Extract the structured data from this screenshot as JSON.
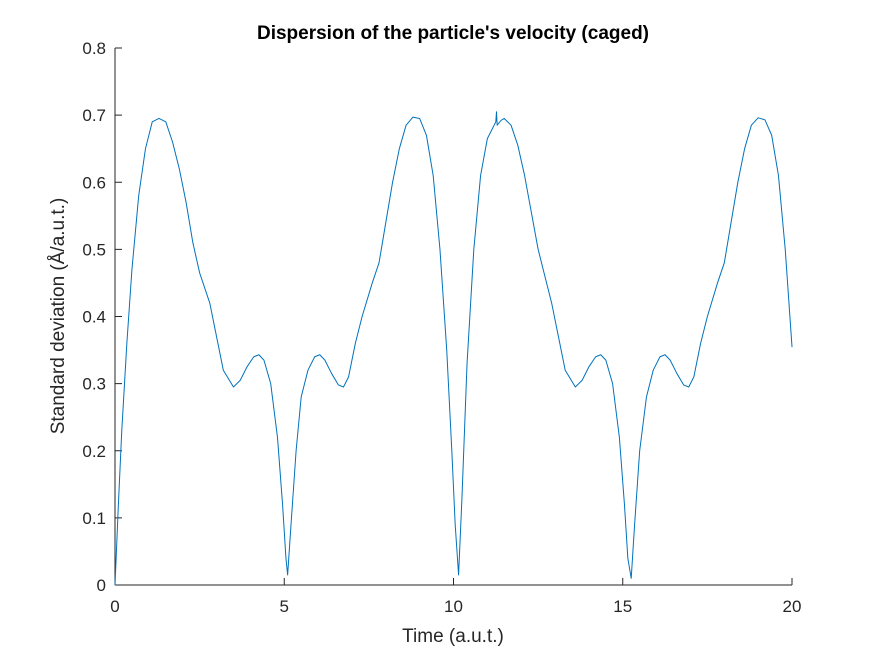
{
  "chart_data": {
    "type": "line",
    "title": "Dispersion of the particle's velocity (caged)",
    "xlabel": "Time (a.u.t.)",
    "ylabel": "Standard deviation (Å/a.u.t.)",
    "xlim": [
      0,
      20
    ],
    "ylim": [
      0,
      0.8
    ],
    "xticks": [
      0,
      5,
      10,
      15,
      20
    ],
    "xtick_labels": [
      "0",
      "5",
      "10",
      "15",
      "20"
    ],
    "yticks": [
      0,
      0.1,
      0.2,
      0.3,
      0.4,
      0.5,
      0.6,
      0.7,
      0.8
    ],
    "ytick_labels": [
      "0",
      "0.1",
      "0.2",
      "0.3",
      "0.4",
      "0.5",
      "0.6",
      "0.7",
      "0.8"
    ],
    "grid": false,
    "series": [
      {
        "color": "#0072BD",
        "points": [
          [
            0.0,
            0.0
          ],
          [
            0.1,
            0.12
          ],
          [
            0.2,
            0.23
          ],
          [
            0.35,
            0.36
          ],
          [
            0.5,
            0.47
          ],
          [
            0.7,
            0.58
          ],
          [
            0.9,
            0.65
          ],
          [
            1.1,
            0.69
          ],
          [
            1.3,
            0.695
          ],
          [
            1.5,
            0.69
          ],
          [
            1.7,
            0.66
          ],
          [
            1.9,
            0.62
          ],
          [
            2.1,
            0.57
          ],
          [
            2.3,
            0.51
          ],
          [
            2.5,
            0.465
          ],
          [
            2.8,
            0.42
          ],
          [
            3.0,
            0.37
          ],
          [
            3.2,
            0.32
          ],
          [
            3.5,
            0.295
          ],
          [
            3.7,
            0.305
          ],
          [
            3.9,
            0.325
          ],
          [
            4.1,
            0.34
          ],
          [
            4.25,
            0.343
          ],
          [
            4.4,
            0.335
          ],
          [
            4.6,
            0.3
          ],
          [
            4.8,
            0.22
          ],
          [
            4.95,
            0.12
          ],
          [
            5.05,
            0.04
          ],
          [
            5.1,
            0.015
          ],
          [
            5.2,
            0.09
          ],
          [
            5.35,
            0.2
          ],
          [
            5.5,
            0.28
          ],
          [
            5.7,
            0.32
          ],
          [
            5.9,
            0.34
          ],
          [
            6.05,
            0.343
          ],
          [
            6.2,
            0.335
          ],
          [
            6.4,
            0.315
          ],
          [
            6.6,
            0.298
          ],
          [
            6.75,
            0.295
          ],
          [
            6.9,
            0.31
          ],
          [
            7.1,
            0.36
          ],
          [
            7.3,
            0.4
          ],
          [
            7.6,
            0.45
          ],
          [
            7.8,
            0.48
          ],
          [
            8.0,
            0.54
          ],
          [
            8.2,
            0.6
          ],
          [
            8.4,
            0.65
          ],
          [
            8.6,
            0.685
          ],
          [
            8.8,
            0.697
          ],
          [
            9.0,
            0.695
          ],
          [
            9.2,
            0.67
          ],
          [
            9.4,
            0.61
          ],
          [
            9.6,
            0.5
          ],
          [
            9.8,
            0.35
          ],
          [
            9.95,
            0.2
          ],
          [
            10.05,
            0.09
          ],
          [
            10.15,
            0.015
          ],
          [
            10.25,
            0.13
          ],
          [
            10.4,
            0.33
          ],
          [
            10.6,
            0.5
          ],
          [
            10.8,
            0.61
          ],
          [
            11.0,
            0.665
          ],
          [
            11.2,
            0.685
          ],
          [
            11.25,
            0.69
          ],
          [
            11.27,
            0.705
          ],
          [
            11.29,
            0.685
          ],
          [
            11.4,
            0.692
          ],
          [
            11.5,
            0.695
          ],
          [
            11.7,
            0.685
          ],
          [
            11.9,
            0.655
          ],
          [
            12.1,
            0.61
          ],
          [
            12.3,
            0.555
          ],
          [
            12.5,
            0.5
          ],
          [
            12.7,
            0.46
          ],
          [
            12.9,
            0.42
          ],
          [
            13.1,
            0.37
          ],
          [
            13.3,
            0.32
          ],
          [
            13.6,
            0.295
          ],
          [
            13.8,
            0.305
          ],
          [
            14.0,
            0.325
          ],
          [
            14.2,
            0.34
          ],
          [
            14.35,
            0.343
          ],
          [
            14.5,
            0.335
          ],
          [
            14.7,
            0.3
          ],
          [
            14.9,
            0.22
          ],
          [
            15.05,
            0.12
          ],
          [
            15.15,
            0.04
          ],
          [
            15.25,
            0.01
          ],
          [
            15.35,
            0.09
          ],
          [
            15.5,
            0.2
          ],
          [
            15.7,
            0.28
          ],
          [
            15.9,
            0.32
          ],
          [
            16.1,
            0.34
          ],
          [
            16.25,
            0.343
          ],
          [
            16.4,
            0.335
          ],
          [
            16.6,
            0.315
          ],
          [
            16.8,
            0.298
          ],
          [
            16.95,
            0.295
          ],
          [
            17.1,
            0.31
          ],
          [
            17.3,
            0.36
          ],
          [
            17.5,
            0.4
          ],
          [
            17.8,
            0.45
          ],
          [
            18.0,
            0.48
          ],
          [
            18.2,
            0.54
          ],
          [
            18.4,
            0.6
          ],
          [
            18.6,
            0.65
          ],
          [
            18.8,
            0.685
          ],
          [
            19.0,
            0.696
          ],
          [
            19.2,
            0.693
          ],
          [
            19.4,
            0.67
          ],
          [
            19.6,
            0.61
          ],
          [
            19.8,
            0.5
          ],
          [
            20.0,
            0.355
          ]
        ]
      }
    ]
  }
}
